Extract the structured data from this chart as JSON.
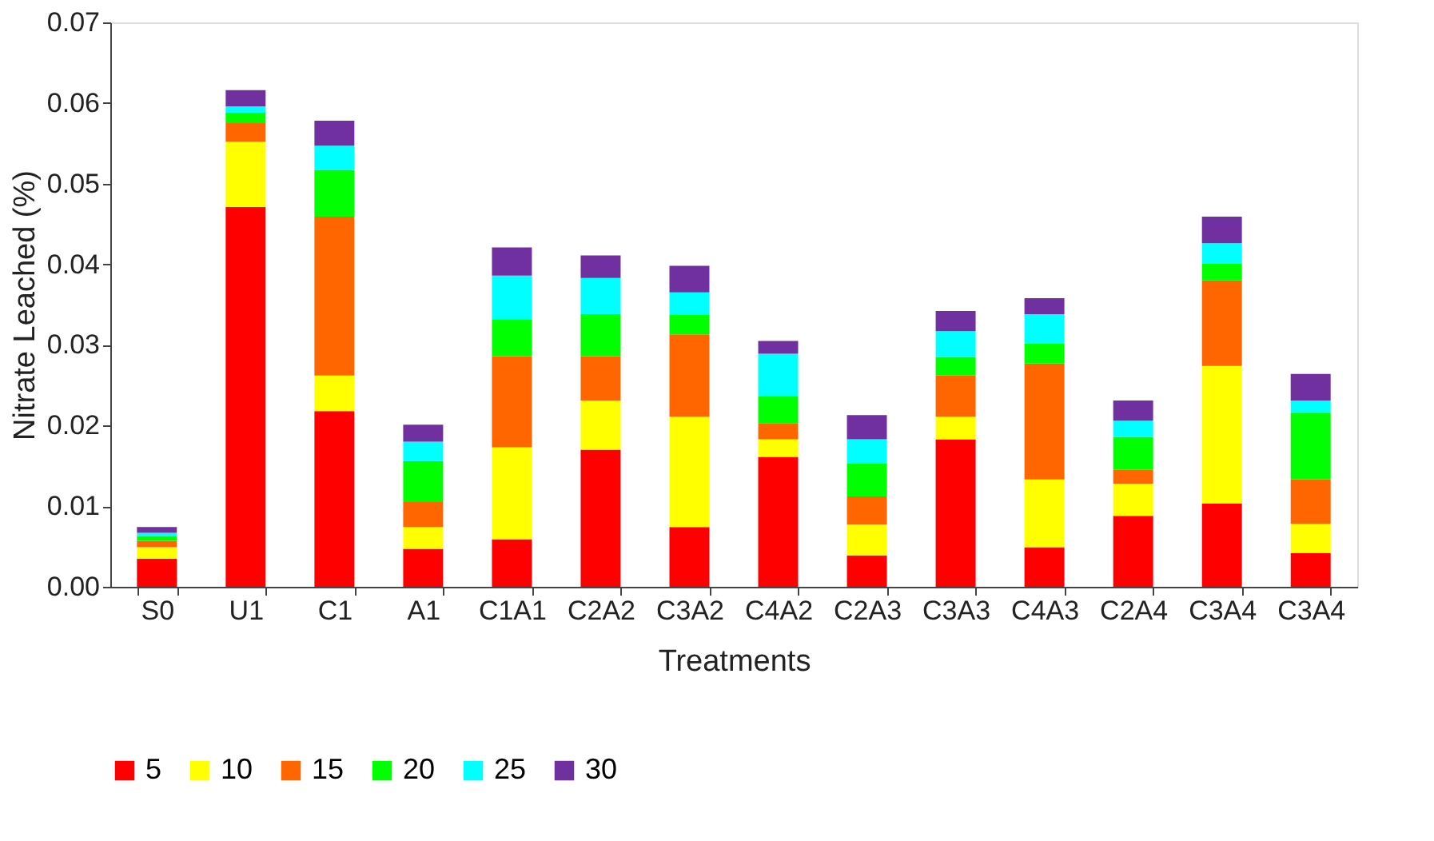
{
  "chart_data": {
    "type": "bar",
    "stacked": true,
    "xlabel": "Treatments",
    "ylabel": "Nitrate Leached (%)",
    "categories": [
      "S0",
      "U1",
      "C1",
      "A1",
      "C1A1",
      "C2A2",
      "C3A2",
      "C4A2",
      "C2A3",
      "C3A3",
      "C4A3",
      "C2A4",
      "C3A4",
      "C3A4"
    ],
    "series": [
      {
        "name": "5",
        "color": "#ff0000",
        "values": [
          0.0035,
          0.0471,
          0.0218,
          0.0047,
          0.0059,
          0.017,
          0.0074,
          0.0161,
          0.0039,
          0.0183,
          0.0049,
          0.0088,
          0.0103,
          0.0042
        ]
      },
      {
        "name": "10",
        "color": "#ffff00",
        "values": [
          0.0014,
          0.0081,
          0.0044,
          0.0027,
          0.0114,
          0.0061,
          0.0137,
          0.0022,
          0.0038,
          0.0028,
          0.0084,
          0.004,
          0.0171,
          0.0036
        ]
      },
      {
        "name": "15",
        "color": "#ff6600",
        "values": [
          0.0008,
          0.0023,
          0.0197,
          0.0031,
          0.0113,
          0.0055,
          0.0102,
          0.002,
          0.0035,
          0.0051,
          0.0144,
          0.0017,
          0.0106,
          0.0055
        ]
      },
      {
        "name": "20",
        "color": "#00ff00",
        "values": [
          0.0006,
          0.0013,
          0.0058,
          0.0051,
          0.0046,
          0.0052,
          0.0024,
          0.0033,
          0.0041,
          0.0023,
          0.0025,
          0.0041,
          0.0021,
          0.0083
        ]
      },
      {
        "name": "25",
        "color": "#00ffff",
        "values": [
          0.0004,
          0.0008,
          0.003,
          0.0024,
          0.0054,
          0.0045,
          0.0028,
          0.0053,
          0.003,
          0.0032,
          0.0036,
          0.002,
          0.0025,
          0.0015
        ]
      },
      {
        "name": "30",
        "color": "#7030a0",
        "values": [
          0.0007,
          0.002,
          0.0031,
          0.0021,
          0.0035,
          0.0028,
          0.0033,
          0.0016,
          0.003,
          0.0025,
          0.002,
          0.0025,
          0.0033,
          0.0033
        ]
      }
    ],
    "ylim": [
      0,
      0.07
    ],
    "yticks": [
      {
        "value": 0,
        "label": "0.00"
      },
      {
        "value": 0.01,
        "label": "0.01"
      },
      {
        "value": 0.02,
        "label": "0.02"
      },
      {
        "value": 0.03,
        "label": "0.03"
      },
      {
        "value": 0.04,
        "label": "0.04"
      },
      {
        "value": 0.05,
        "label": "0.05"
      },
      {
        "value": 0.06,
        "label": "0.06"
      },
      {
        "value": 0.07,
        "label": "0.07"
      }
    ],
    "grid": false,
    "legend": "bottom"
  }
}
